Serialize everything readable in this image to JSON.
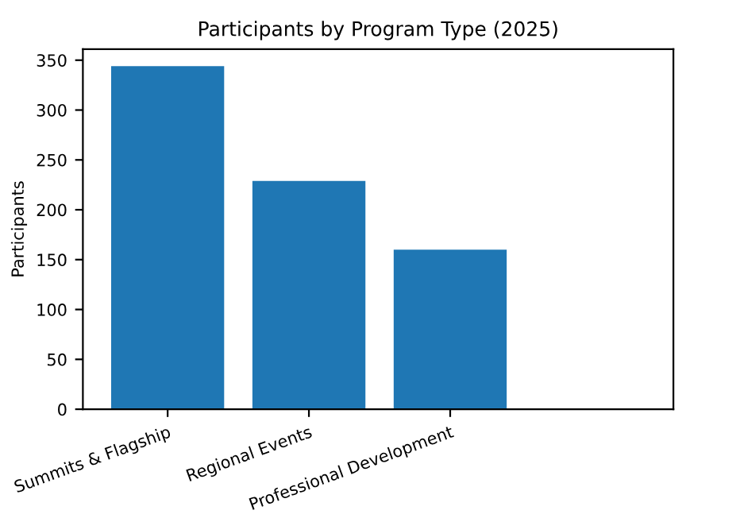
{
  "chart_data": {
    "type": "bar",
    "title": "Participants by Program Type (2025)",
    "ylabel": "Participants",
    "categories": [
      "Summits & Flagship",
      "Regional Events",
      "Professional Development"
    ],
    "values": [
      344,
      229,
      160
    ],
    "color": "#1f77b4",
    "ylim": [
      0,
      361
    ],
    "yticks": [
      0,
      50,
      100,
      150,
      200,
      250,
      300,
      350
    ],
    "grid": false,
    "legend": false
  }
}
